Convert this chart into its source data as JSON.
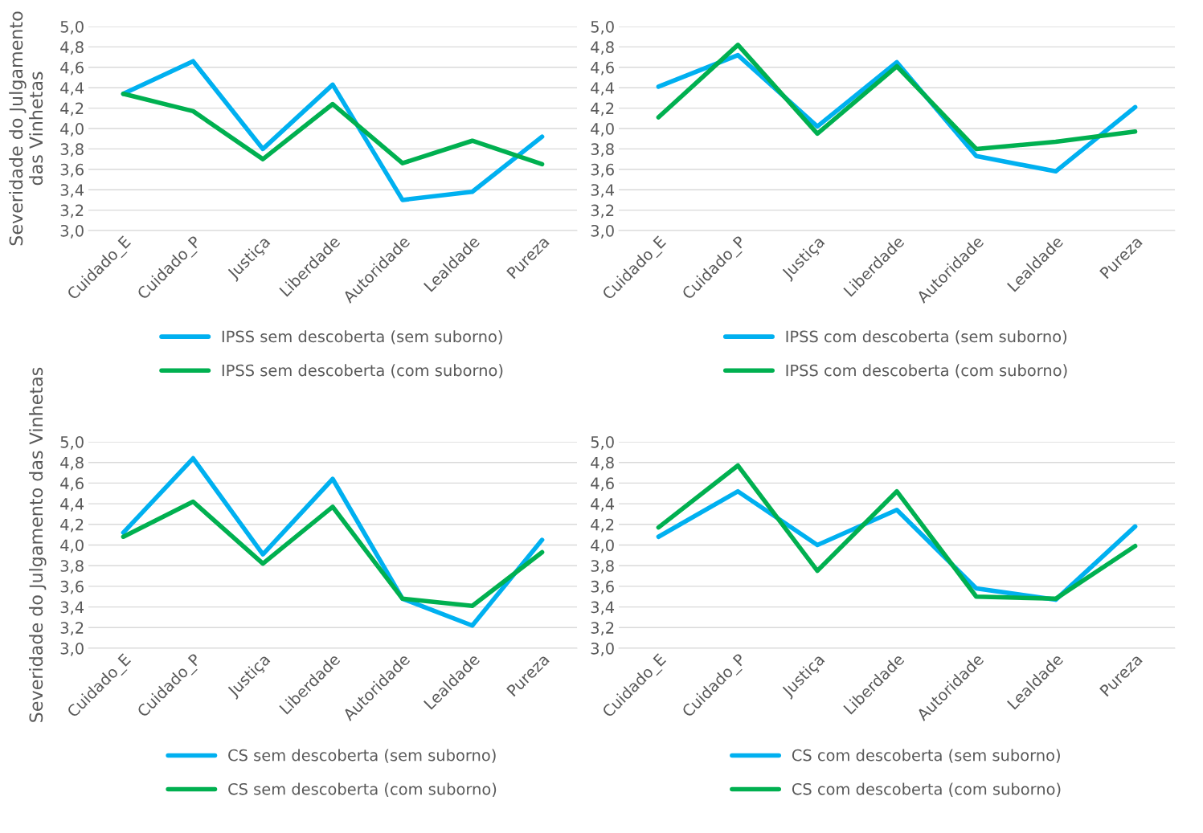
{
  "chart_data": [
    {
      "type": "line",
      "ylabel": "Severidade do Julgamento das Vinhetas",
      "categories": [
        "Cuidado_E",
        "Cuidado_P",
        "Justiça",
        "Liberdade",
        "Autoridade",
        "Lealdade",
        "Pureza"
      ],
      "ylim": [
        3.0,
        5.0
      ],
      "yticks": [
        {
          "value": 3.0,
          "label": "3,0"
        },
        {
          "value": 3.2,
          "label": "3,2"
        },
        {
          "value": 3.4,
          "label": "3,4"
        },
        {
          "value": 3.6,
          "label": "3,6"
        },
        {
          "value": 3.8,
          "label": "3,8"
        },
        {
          "value": 4.0,
          "label": "4,0"
        },
        {
          "value": 4.2,
          "label": "4,2"
        },
        {
          "value": 4.4,
          "label": "4,4"
        },
        {
          "value": 4.6,
          "label": "4,6"
        },
        {
          "value": 4.8,
          "label": "4,8"
        },
        {
          "value": 5.0,
          "label": "5,0"
        }
      ],
      "grid": "y",
      "legend": "bottom",
      "marker": "none",
      "line_style": "solid",
      "series": [
        {
          "name": "IPSS sem descoberta (sem suborno)",
          "color": "#00b0f0",
          "values": [
            4.34,
            4.66,
            3.8,
            4.43,
            3.3,
            3.38,
            3.92
          ]
        },
        {
          "name": "IPSS sem descoberta (com suborno)",
          "color": "#00b050",
          "values": [
            4.34,
            4.17,
            3.7,
            4.24,
            3.66,
            3.88,
            3.65
          ]
        }
      ]
    },
    {
      "type": "line",
      "categories": [
        "Cuidado_E",
        "Cuidado_P",
        "Justiça",
        "Liberdade",
        "Autoridade",
        "Lealdade",
        "Pureza"
      ],
      "ylim": [
        3.0,
        5.0
      ],
      "yticks": [
        {
          "value": 3.0,
          "label": "3,0"
        },
        {
          "value": 3.2,
          "label": "3,2"
        },
        {
          "value": 3.4,
          "label": "3,4"
        },
        {
          "value": 3.6,
          "label": "3,6"
        },
        {
          "value": 3.8,
          "label": "3,8"
        },
        {
          "value": 4.0,
          "label": "4,0"
        },
        {
          "value": 4.2,
          "label": "4,2"
        },
        {
          "value": 4.4,
          "label": "4,4"
        },
        {
          "value": 4.6,
          "label": "4,6"
        },
        {
          "value": 4.8,
          "label": "4,8"
        },
        {
          "value": 5.0,
          "label": "5,0"
        }
      ],
      "grid": "y",
      "legend": "bottom",
      "marker": "none",
      "line_style": "solid",
      "series": [
        {
          "name": "IPSS com descoberta (sem suborno)",
          "color": "#00b0f0",
          "values": [
            4.41,
            4.72,
            4.02,
            4.65,
            3.73,
            3.58,
            4.21
          ]
        },
        {
          "name": "IPSS com descoberta (com suborno)",
          "color": "#00b050",
          "values": [
            4.11,
            4.82,
            3.95,
            4.61,
            3.8,
            3.87,
            3.97
          ]
        }
      ]
    },
    {
      "type": "line",
      "ylabel": "Severidade do Julgamento das Vinhetas",
      "categories": [
        "Cuidado_E",
        "Cuidado_P",
        "Justiça",
        "Liberdade",
        "Autoridade",
        "Lealdade",
        "Pureza"
      ],
      "ylim": [
        3.0,
        5.0
      ],
      "yticks": [
        {
          "value": 3.0,
          "label": "3,0"
        },
        {
          "value": 3.2,
          "label": "3,2"
        },
        {
          "value": 3.4,
          "label": "3,4"
        },
        {
          "value": 3.6,
          "label": "3,6"
        },
        {
          "value": 3.8,
          "label": "3,8"
        },
        {
          "value": 4.0,
          "label": "4,0"
        },
        {
          "value": 4.2,
          "label": "4,2"
        },
        {
          "value": 4.4,
          "label": "4,4"
        },
        {
          "value": 4.6,
          "label": "4,6"
        },
        {
          "value": 4.8,
          "label": "4,8"
        },
        {
          "value": 5.0,
          "label": "5,0"
        }
      ],
      "grid": "y",
      "legend": "bottom",
      "marker": "none",
      "line_style": "solid",
      "series": [
        {
          "name": "CS sem descoberta (sem suborno)",
          "color": "#00b0f0",
          "values": [
            4.12,
            4.84,
            3.91,
            4.64,
            3.48,
            3.22,
            4.05
          ]
        },
        {
          "name": "CS sem descoberta (com suborno)",
          "color": "#00b050",
          "values": [
            4.08,
            4.42,
            3.82,
            4.37,
            3.48,
            3.41,
            3.93
          ]
        }
      ]
    },
    {
      "type": "line",
      "categories": [
        "Cuidado_E",
        "Cuidado_P",
        "Justiça",
        "Liberdade",
        "Autoridade",
        "Lealdade",
        "Pureza"
      ],
      "ylim": [
        3.0,
        5.0
      ],
      "yticks": [
        {
          "value": 3.0,
          "label": "3,0"
        },
        {
          "value": 3.2,
          "label": "3,2"
        },
        {
          "value": 3.4,
          "label": "3,4"
        },
        {
          "value": 3.6,
          "label": "3,6"
        },
        {
          "value": 3.8,
          "label": "3,8"
        },
        {
          "value": 4.0,
          "label": "4,0"
        },
        {
          "value": 4.2,
          "label": "4,2"
        },
        {
          "value": 4.4,
          "label": "4,4"
        },
        {
          "value": 4.6,
          "label": "4,6"
        },
        {
          "value": 4.8,
          "label": "4,8"
        },
        {
          "value": 5.0,
          "label": "5,0"
        }
      ],
      "grid": "y",
      "legend": "bottom",
      "marker": "none",
      "line_style": "solid",
      "series": [
        {
          "name": "CS com descoberta (sem suborno)",
          "color": "#00b0f0",
          "values": [
            4.08,
            4.52,
            4.0,
            4.34,
            3.58,
            3.47,
            4.18
          ]
        },
        {
          "name": "CS com descoberta (com suborno)",
          "color": "#00b050",
          "values": [
            4.17,
            4.77,
            3.75,
            4.52,
            3.5,
            3.48,
            3.99
          ]
        }
      ]
    }
  ]
}
